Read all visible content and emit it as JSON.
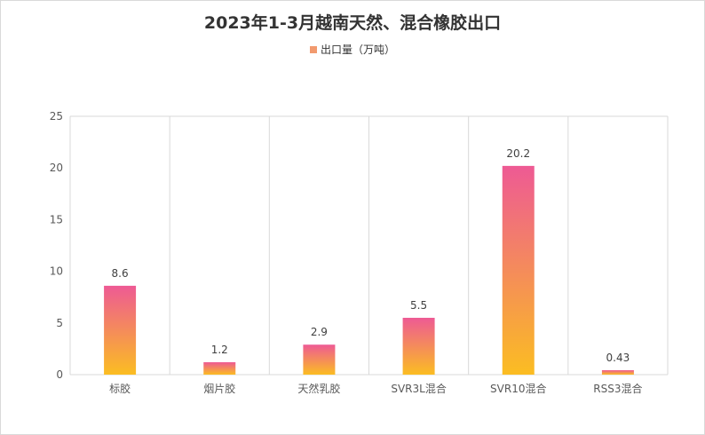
{
  "chart_data": {
    "type": "bar",
    "title": "2023年1-3月越南天然、混合橡胶出口",
    "categories": [
      "标胶",
      "烟片胶",
      "天然乳胶",
      "SVR3L混合",
      "SVR10混合",
      "RSS3混合"
    ],
    "series": [
      {
        "name": "出口量（万吨）",
        "values": [
          8.6,
          1.2,
          2.9,
          5.5,
          20.2,
          0.43
        ]
      }
    ],
    "data_labels": [
      "8.6",
      "1.2",
      "2.9",
      "5.5",
      "20.2",
      "0.43"
    ],
    "ylim": [
      0,
      25
    ],
    "yticks": [
      0,
      5,
      10,
      15,
      20,
      25
    ],
    "grid": "vertical category separators",
    "legend_position": "top-center",
    "colors": {
      "bar_top": "#ee5a94",
      "bar_bottom": "#fbbd22",
      "legend": "#f29a6e",
      "axis": "#d9d9d9",
      "text": "#595959"
    }
  }
}
